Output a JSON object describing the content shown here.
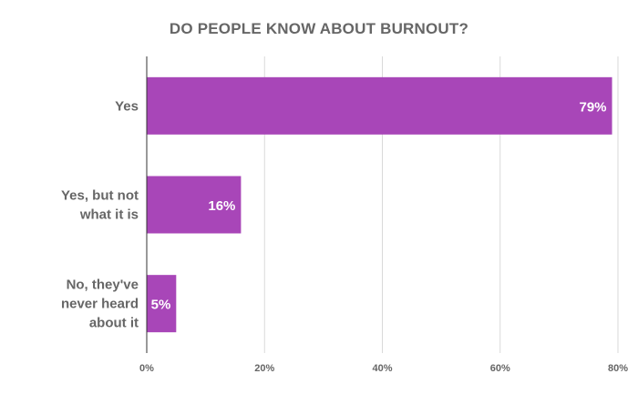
{
  "chart_data": {
    "type": "bar",
    "orientation": "horizontal",
    "title": "DO PEOPLE KNOW ABOUT BURNOUT?",
    "categories": [
      "Yes",
      "Yes, but not what it is",
      "No, they've never heard about it"
    ],
    "category_lines": [
      [
        "Yes"
      ],
      [
        "Yes, but not",
        "what it is"
      ],
      [
        "No, they've",
        "never heard",
        "about it"
      ]
    ],
    "values": [
      79,
      16,
      5
    ],
    "data_labels": [
      "79%",
      "16%",
      "5%"
    ],
    "xlim": [
      0,
      80
    ],
    "x_ticks": [
      0,
      20,
      40,
      60,
      80
    ],
    "x_tick_labels": [
      "0%",
      "20%",
      "40%",
      "60%",
      "80%"
    ],
    "grid": true,
    "legend": "none",
    "bar_color": "#a846b8",
    "label_color": "#666666",
    "grid_color": "#d9d9d9"
  }
}
